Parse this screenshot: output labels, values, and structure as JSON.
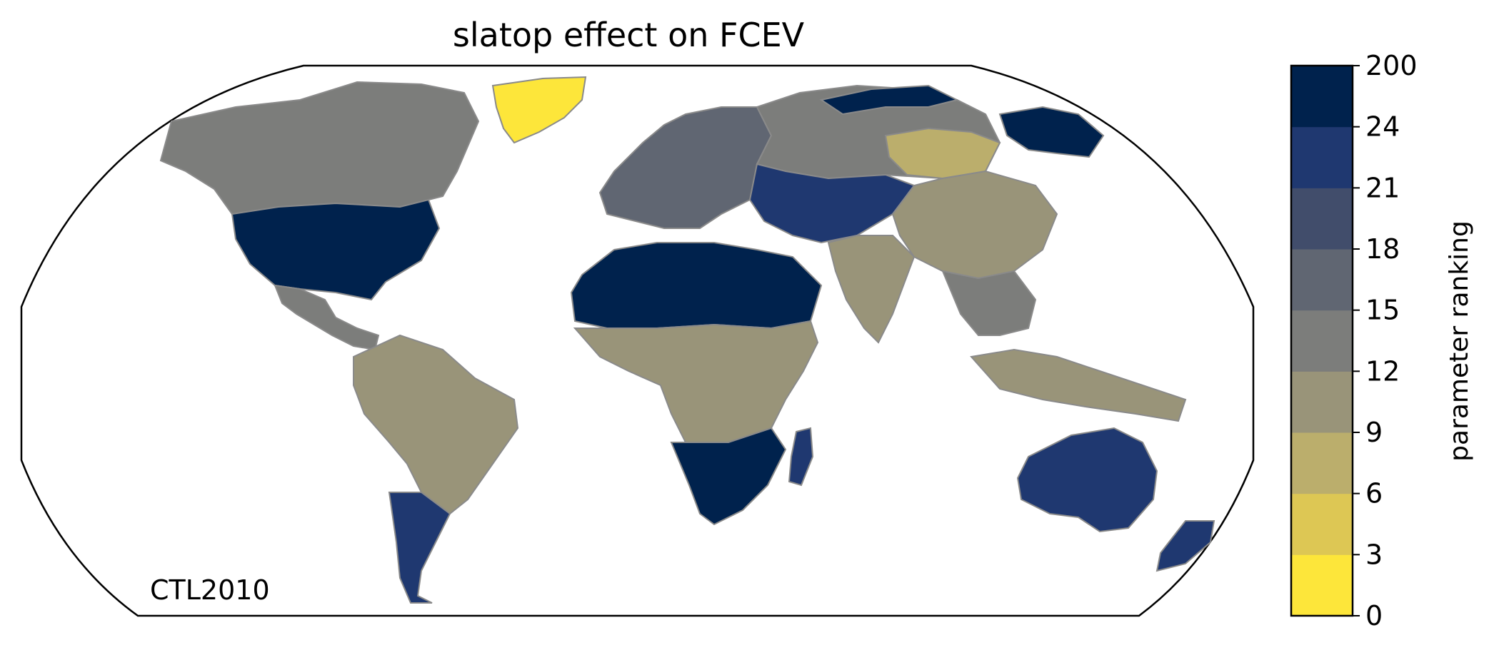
{
  "title": "slatop effect on FCEV",
  "corner_label": "CTL2010",
  "colorbar": {
    "label": "parameter ranking",
    "ticks": [
      "0",
      "3",
      "6",
      "9",
      "12",
      "15",
      "18",
      "21",
      "24",
      "200"
    ],
    "colors": [
      "#fde63a",
      "#ddc754",
      "#bbae6c",
      "#999479",
      "#7c7d7b",
      "#606672",
      "#414d6b",
      "#1f3870",
      "#00224d"
    ]
  },
  "regions": [
    {
      "name": "canada",
      "color": "#7c7d7b"
    },
    {
      "name": "usa",
      "color": "#00224d"
    },
    {
      "name": "central-america",
      "color": "#7c7d7b"
    },
    {
      "name": "greenland",
      "color": "#fde63a"
    },
    {
      "name": "south-america",
      "color": "#999479"
    },
    {
      "name": "patagonia",
      "color": "#1f3870"
    },
    {
      "name": "europe",
      "color": "#606672"
    },
    {
      "name": "sahara",
      "color": "#00224d"
    },
    {
      "name": "sub-saharan-africa",
      "color": "#999479"
    },
    {
      "name": "southern-africa",
      "color": "#00224d"
    },
    {
      "name": "madagascar",
      "color": "#1f3870"
    },
    {
      "name": "russia",
      "color": "#7c7d7b"
    },
    {
      "name": "siberia",
      "color": "#00224d"
    },
    {
      "name": "central-asia",
      "color": "#1f3870"
    },
    {
      "name": "mongolia",
      "color": "#bbae6c"
    },
    {
      "name": "china",
      "color": "#999479"
    },
    {
      "name": "india",
      "color": "#999479"
    },
    {
      "name": "southeast-asia",
      "color": "#7c7d7b"
    },
    {
      "name": "indonesia",
      "color": "#999479"
    },
    {
      "name": "australia",
      "color": "#1f3870"
    },
    {
      "name": "new-zealand",
      "color": "#1f3870"
    }
  ]
}
